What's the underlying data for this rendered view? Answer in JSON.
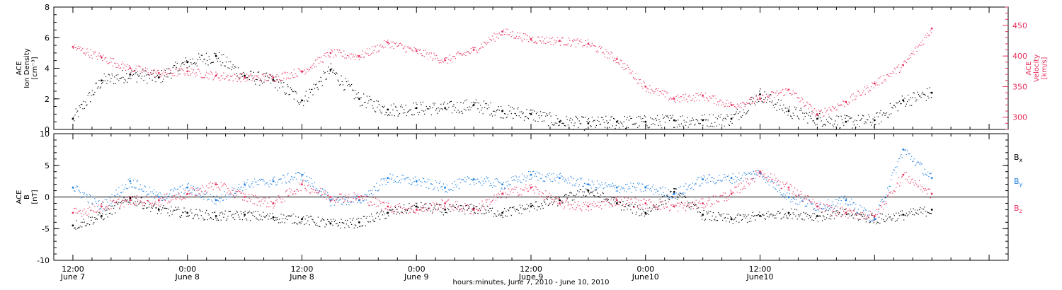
{
  "chart_data": [
    {
      "panel": "top",
      "type": "scatter",
      "ylabel_left": [
        "ACE",
        "Ion Density",
        "[cm⁻³]"
      ],
      "ylabel_right": [
        "ACE",
        "Velocity",
        "[km/s]"
      ],
      "ylim_left": [
        0,
        8
      ],
      "yticks_left": [
        0,
        2,
        4,
        6,
        8
      ],
      "ylim_right": [
        280,
        480
      ],
      "yticks_right": [
        300,
        350,
        400,
        450
      ],
      "series": [
        {
          "axis": "left",
          "color": "#000000",
          "x": [
            0,
            3,
            6,
            9,
            12,
            15,
            18,
            21,
            24,
            27,
            30,
            33,
            36,
            39,
            42,
            45,
            48,
            51,
            54,
            57,
            60,
            63,
            66,
            69,
            72,
            75,
            78,
            81,
            84,
            87,
            90
          ],
          "y": [
            0.7,
            3.2,
            3.6,
            3.4,
            4.4,
            4.8,
            3.5,
            3.2,
            1.9,
            3.9,
            2.0,
            1.3,
            1.4,
            1.4,
            1.6,
            1.2,
            1.0,
            0.5,
            0.4,
            0.5,
            0.5,
            0.6,
            0.6,
            0.7,
            2.3,
            1.2,
            0.7,
            0.5,
            0.6,
            1.9,
            2.4
          ]
        },
        {
          "axis": "right",
          "color": "#e8335e",
          "x": [
            0,
            3,
            6,
            9,
            12,
            15,
            18,
            21,
            24,
            27,
            30,
            33,
            36,
            39,
            42,
            45,
            48,
            51,
            54,
            57,
            60,
            63,
            66,
            69,
            72,
            75,
            78,
            81,
            84,
            87,
            90
          ],
          "y": [
            415,
            398,
            380,
            372,
            375,
            368,
            365,
            365,
            375,
            405,
            400,
            422,
            408,
            393,
            410,
            440,
            428,
            425,
            420,
            395,
            350,
            330,
            335,
            320,
            330,
            345,
            305,
            325,
            355,
            385,
            445
          ]
        }
      ]
    },
    {
      "panel": "bottom",
      "type": "scatter",
      "ylabel": [
        "ACE",
        "B",
        "[nT]"
      ],
      "ylim": [
        -10,
        10
      ],
      "yticks": [
        -10,
        -5,
        0,
        5,
        10
      ],
      "zero_line": true,
      "legend": [
        {
          "text": "B",
          "sub": "x",
          "color": "#000000"
        },
        {
          "text": "B",
          "sub": "y",
          "color": "#1f7fe0"
        },
        {
          "text": "B",
          "sub": "z",
          "color": "#e8335e"
        }
      ],
      "series": [
        {
          "name": "Bx",
          "color": "#000000",
          "x": [
            0,
            3,
            6,
            9,
            12,
            15,
            18,
            21,
            24,
            27,
            30,
            33,
            36,
            39,
            42,
            45,
            48,
            51,
            54,
            57,
            60,
            63,
            66,
            69,
            72,
            75,
            78,
            81,
            84,
            87,
            90
          ],
          "y": [
            -4.5,
            -3.0,
            -0.2,
            -2.0,
            -2.5,
            -3.0,
            -2.8,
            -3.2,
            -3.5,
            -4.2,
            -4.0,
            -2.5,
            -1.5,
            -2.0,
            -1.8,
            -2.5,
            -1.5,
            -0.5,
            1.0,
            -1.0,
            -2.5,
            0.8,
            -2.8,
            -3.5,
            -3.0,
            -2.5,
            -3.0,
            -2.5,
            -3.5,
            -2.8,
            -2.0
          ]
        },
        {
          "name": "By",
          "color": "#1f7fe0",
          "x": [
            0,
            3,
            6,
            9,
            12,
            15,
            18,
            21,
            24,
            27,
            30,
            33,
            36,
            39,
            42,
            45,
            48,
            51,
            54,
            57,
            60,
            63,
            66,
            69,
            72,
            75,
            78,
            81,
            84,
            87,
            90
          ],
          "y": [
            1.5,
            -1.5,
            2.5,
            0.0,
            1.5,
            -0.5,
            2.0,
            2.5,
            3.5,
            -0.5,
            -0.5,
            3.0,
            2.5,
            1.5,
            2.8,
            2.0,
            3.5,
            3.0,
            2.0,
            1.5,
            1.5,
            0.5,
            2.8,
            3.0,
            3.8,
            0.0,
            -1.5,
            -0.5,
            -3.5,
            7.5,
            3.0
          ]
        },
        {
          "name": "Bz",
          "color": "#e8335e",
          "x": [
            0,
            3,
            6,
            9,
            12,
            15,
            18,
            21,
            24,
            27,
            30,
            33,
            36,
            39,
            42,
            45,
            48,
            51,
            54,
            57,
            60,
            63,
            66,
            69,
            72,
            75,
            78,
            81,
            84,
            87,
            90
          ],
          "y": [
            -2.5,
            -1.5,
            -0.5,
            -0.5,
            0.5,
            2.0,
            0.0,
            -1.0,
            2.0,
            0.0,
            0.0,
            -1.5,
            -2.0,
            -1.0,
            -2.0,
            0.5,
            1.5,
            -1.0,
            -1.5,
            -0.5,
            -1.0,
            -1.5,
            -1.0,
            0.5,
            4.0,
            1.5,
            -1.5,
            -2.5,
            -3.0,
            3.5,
            0.5
          ]
        }
      ]
    }
  ],
  "x_axis": {
    "range_hours": [
      -2,
      98
    ],
    "ticks": [
      {
        "hour": 0,
        "time": "12:00",
        "date": "June 7"
      },
      {
        "hour": 12,
        "time": "0:00",
        "date": "June 8"
      },
      {
        "hour": 24,
        "time": "12:00",
        "date": "June 8"
      },
      {
        "hour": 36,
        "time": "0:00",
        "date": "June 9"
      },
      {
        "hour": 48,
        "time": "12:00",
        "date": "June 9"
      },
      {
        "hour": 60,
        "time": "0:00",
        "date": "June10"
      },
      {
        "hour": 72,
        "time": "12:00",
        "date": "June10"
      }
    ],
    "title": "hours:minutes, June  7, 2010 - June 10, 2010"
  },
  "colors": {
    "density": "#000000",
    "velocity": "#e8335e",
    "bx": "#000000",
    "by": "#1f7fe0",
    "bz": "#e8335e",
    "axis": "#000000"
  }
}
